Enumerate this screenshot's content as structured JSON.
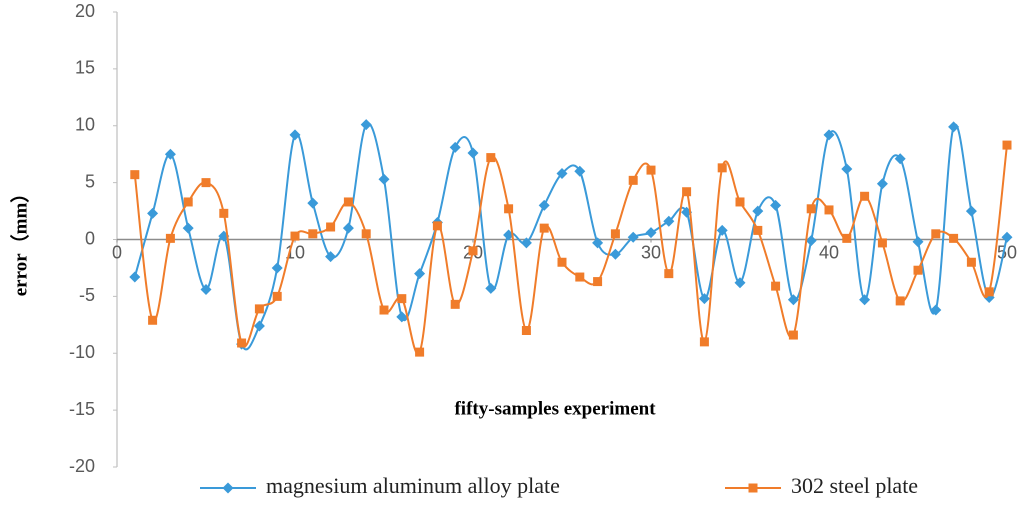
{
  "chart_data": {
    "type": "line",
    "x_label": "fifty-samples experiment",
    "y_label": "error（mm）",
    "x": [
      1,
      2,
      3,
      4,
      5,
      6,
      7,
      8,
      9,
      10,
      11,
      12,
      13,
      14,
      15,
      16,
      17,
      18,
      19,
      20,
      21,
      22,
      23,
      24,
      25,
      26,
      27,
      28,
      29,
      30,
      31,
      32,
      33,
      34,
      35,
      36,
      37,
      38,
      39,
      40,
      41,
      42,
      43,
      44,
      45,
      46,
      47,
      48,
      49,
      50
    ],
    "series": [
      {
        "name": "magnesium aluminum alloy plate",
        "color": "#3a9ad9",
        "marker": "diamond",
        "values": [
          -3.3,
          2.3,
          7.5,
          1.0,
          -4.4,
          0.3,
          -9.2,
          -7.6,
          -2.5,
          9.2,
          3.2,
          -1.5,
          1.0,
          10.1,
          5.3,
          -6.8,
          -3.0,
          1.5,
          8.1,
          7.6,
          -4.3,
          0.4,
          -0.3,
          3.0,
          5.8,
          6.0,
          -0.3,
          -1.3,
          0.2,
          0.6,
          1.6,
          2.4,
          -5.2,
          0.8,
          -3.8,
          2.5,
          3.0,
          -5.3,
          -0.1,
          9.2,
          6.2,
          -5.3,
          4.9,
          7.1,
          -0.2,
          -6.2,
          9.9,
          2.5,
          -5.1,
          0.2
        ]
      },
      {
        "name": "302 steel plate",
        "color": "#f07c2a",
        "marker": "square",
        "values": [
          5.7,
          -7.1,
          0.1,
          3.3,
          5.0,
          2.3,
          -9.1,
          -6.1,
          -5.0,
          0.3,
          0.5,
          1.1,
          3.3,
          0.5,
          -6.2,
          -5.2,
          -9.9,
          1.2,
          -5.7,
          -1.0,
          7.2,
          2.7,
          -8.0,
          1.0,
          -2.0,
          -3.3,
          -3.7,
          0.5,
          5.2,
          6.1,
          -3.0,
          4.2,
          -9.0,
          6.3,
          3.3,
          0.8,
          -4.1,
          -8.4,
          2.7,
          2.6,
          0.1,
          3.8,
          -0.3,
          -5.4,
          -2.7,
          0.5,
          0.1,
          -2.0,
          -4.6,
          8.3
        ]
      }
    ],
    "xlim": [
      0,
      50
    ],
    "xticks": [
      0,
      10,
      20,
      30,
      40,
      50
    ],
    "ylim": [
      -20,
      20
    ],
    "yticks": [
      -20,
      -15,
      -10,
      -5,
      0,
      5,
      10,
      15,
      20
    ],
    "smooth": true,
    "grid": false,
    "legend": "bottom"
  }
}
